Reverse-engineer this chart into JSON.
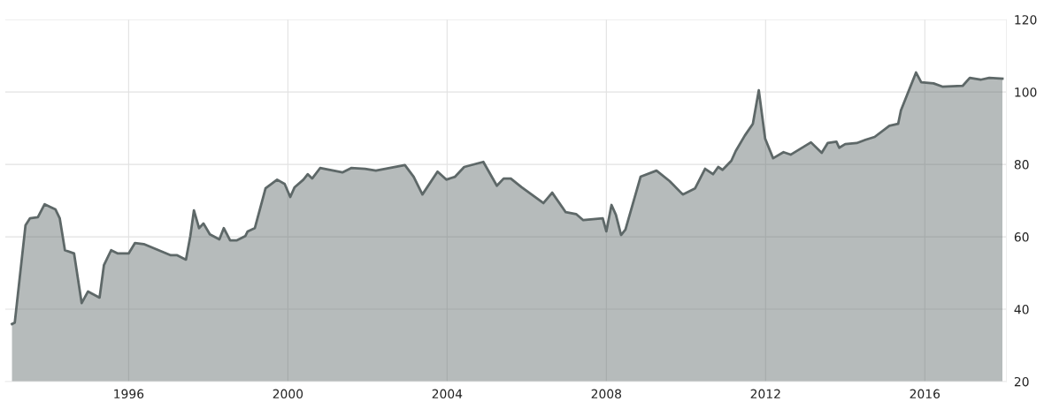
{
  "chart_data": {
    "type": "area",
    "x": [
      1993.07,
      1993.14,
      1993.41,
      1993.52,
      1993.72,
      1993.89,
      1994.16,
      1994.27,
      1994.4,
      1994.63,
      1994.82,
      1994.98,
      1995.27,
      1995.38,
      1995.56,
      1995.73,
      1996.0,
      1996.16,
      1996.38,
      1997.06,
      1997.22,
      1997.44,
      1997.55,
      1997.64,
      1997.77,
      1997.88,
      1998.04,
      1998.28,
      1998.39,
      1998.55,
      1998.71,
      1998.93,
      1998.99,
      1999.17,
      1999.44,
      1999.73,
      1999.92,
      2000.06,
      2000.17,
      2000.39,
      2000.5,
      2000.61,
      2000.81,
      2001.37,
      2001.59,
      2001.94,
      2002.21,
      2002.94,
      2003.16,
      2003.38,
      2003.76,
      2003.98,
      2004.2,
      2004.43,
      2004.91,
      2005.25,
      2005.42,
      2005.6,
      2005.87,
      2006.42,
      2006.64,
      2006.98,
      2007.24,
      2007.42,
      2007.91,
      2008.0,
      2008.13,
      2008.24,
      2008.37,
      2008.48,
      2008.86,
      2009.26,
      2009.59,
      2009.92,
      2010.23,
      2010.48,
      2010.68,
      2010.81,
      2010.92,
      2011.14,
      2011.25,
      2011.48,
      2011.68,
      2011.83,
      2011.99,
      2012.19,
      2012.45,
      2012.63,
      2013.14,
      2013.41,
      2013.56,
      2013.78,
      2013.85,
      2014.0,
      2014.29,
      2014.51,
      2014.74,
      2015.11,
      2015.33,
      2015.4,
      2015.78,
      2015.91,
      2016.22,
      2016.44,
      2016.95,
      2017.13,
      2017.4,
      2017.62,
      2017.95
    ],
    "series": [
      {
        "color": "#5e6868",
        "values": [
          35.9,
          36.3,
          63.2,
          65.1,
          65.4,
          69.0,
          67.6,
          65.1,
          56.3,
          55.4,
          41.7,
          44.9,
          43.2,
          52.2,
          56.3,
          55.4,
          55.4,
          58.3,
          58.0,
          54.9,
          54.9,
          53.7,
          60.2,
          67.3,
          62.4,
          63.7,
          60.7,
          59.3,
          62.4,
          59.0,
          59.0,
          60.2,
          61.5,
          62.4,
          73.4,
          75.8,
          74.6,
          71.0,
          73.7,
          75.8,
          77.3,
          76.1,
          79.0,
          77.8,
          79.0,
          78.8,
          78.3,
          79.8,
          76.6,
          71.7,
          78.0,
          75.8,
          76.6,
          79.3,
          80.7,
          74.1,
          76.1,
          76.1,
          73.7,
          69.3,
          72.2,
          66.8,
          66.3,
          64.6,
          65.1,
          61.5,
          68.8,
          66.1,
          60.5,
          62.0,
          76.6,
          78.3,
          75.4,
          71.7,
          73.4,
          78.8,
          77.3,
          79.3,
          78.5,
          81.0,
          83.7,
          88.0,
          91.2,
          100.5,
          87.1,
          81.7,
          83.4,
          82.7,
          86.1,
          83.2,
          85.9,
          86.3,
          84.6,
          85.6,
          85.9,
          86.8,
          87.6,
          90.7,
          91.2,
          94.9,
          105.4,
          102.7,
          102.4,
          101.5,
          101.7,
          103.9,
          103.4,
          103.9,
          103.7
        ]
      }
    ],
    "xlim": [
      1992.9,
      2018.05
    ],
    "xticks": [
      1996,
      2000,
      2004,
      2008,
      2012,
      2016
    ],
    "ylim": [
      20,
      120
    ],
    "yticks": [
      20,
      40,
      60,
      80,
      100,
      120
    ],
    "grid": true
  }
}
